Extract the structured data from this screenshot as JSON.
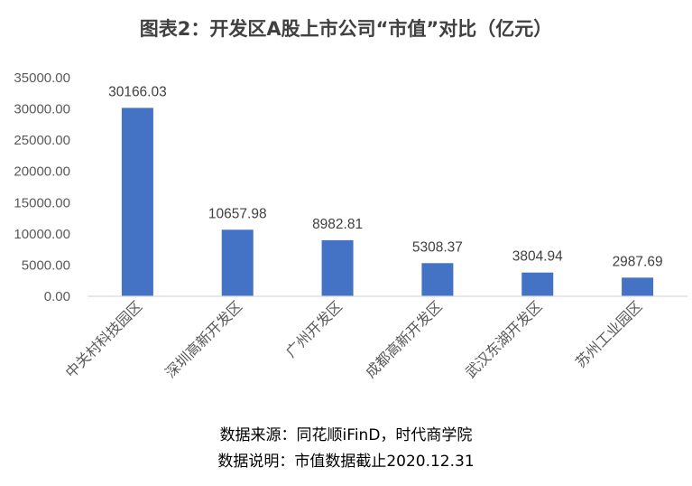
{
  "chart_data": {
    "type": "bar",
    "title": "图表2：开发区A股上市公司“市值”对比（亿元）",
    "categories": [
      "中关村科技园区",
      "深圳高新开发区",
      "广州开发区",
      "成都高新开发区",
      "武汉东湖开发区",
      "苏州工业园区"
    ],
    "values": [
      30166.03,
      10657.98,
      8982.81,
      5308.37,
      3804.94,
      2987.69
    ],
    "data_labels": [
      "30166.03",
      "10657.98",
      "8982.81",
      "5308.37",
      "3804.94",
      "2987.69"
    ],
    "yticks": [
      "0.00",
      "5000.00",
      "10000.00",
      "15000.00",
      "20000.00",
      "25000.00",
      "30000.00",
      "35000.00"
    ],
    "ylim": [
      0,
      35000
    ],
    "xlabel": "",
    "ylabel": "",
    "bar_color": "#4472C4",
    "axis_color": "#D9D9D9",
    "grid": false,
    "legend": "none"
  },
  "notes": {
    "source": "数据来源：同花顺iFinD，时代商学院",
    "description": "数据说明：市值数据截止2020.12.31"
  }
}
